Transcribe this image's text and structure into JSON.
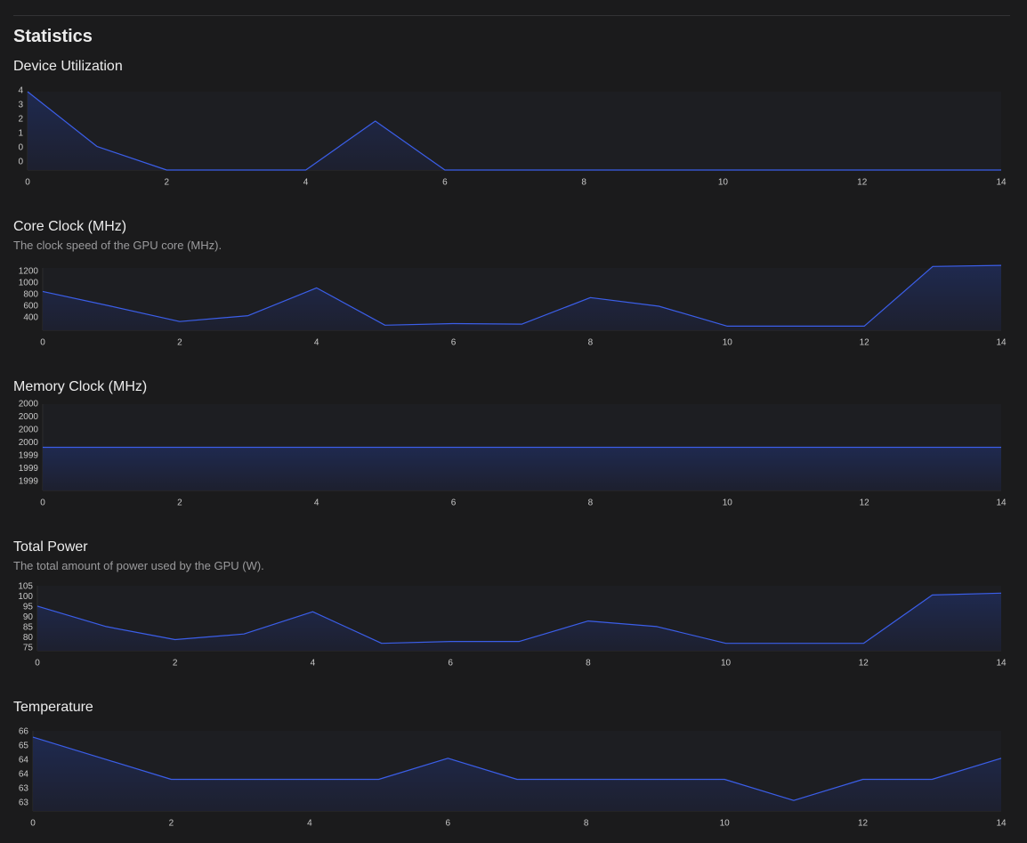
{
  "page": {
    "title": "Statistics"
  },
  "colors": {
    "background": "#1b1b1c",
    "line": "#3b5ee8",
    "area_top": "#1f2a52",
    "area_bottom": "#1d2030",
    "axis": "#2c2c2e",
    "tick_text": "#c8c8c8",
    "title_text": "#ececec",
    "desc_text": "#9a9a9c"
  },
  "chart_data": [
    {
      "id": "device-utilization",
      "type": "area",
      "title": "Device Utilization",
      "description": "",
      "x": [
        0,
        1,
        2,
        3,
        4,
        5,
        6,
        7,
        8,
        9,
        10,
        11,
        12,
        13,
        14
      ],
      "xticks": [
        "0",
        "2",
        "4",
        "6",
        "8",
        "10",
        "12",
        "14"
      ],
      "ytick_labels": [
        "4",
        "3",
        "2",
        "1",
        "0",
        "0"
      ],
      "ylim": [
        0,
        4
      ],
      "series": [
        {
          "values": [
            4,
            1.2,
            0,
            0,
            0,
            2.5,
            0,
            0,
            0,
            0,
            0,
            0,
            0,
            0,
            0
          ]
        }
      ],
      "grid": false
    },
    {
      "id": "core-clock",
      "type": "area",
      "title": "Core Clock (MHz)",
      "description": "The clock speed of the GPU core (MHz).",
      "x": [
        0,
        1,
        2,
        3,
        4,
        5,
        6,
        7,
        8,
        9,
        10,
        11,
        12,
        13,
        14
      ],
      "xticks": [
        "0",
        "2",
        "4",
        "6",
        "8",
        "10",
        "12",
        "14"
      ],
      "ytick_labels": [
        "1200",
        "1000",
        "800",
        "600",
        "400"
      ],
      "ylim": [
        130,
        1350
      ],
      "series": [
        {
          "values": [
            890,
            600,
            300,
            415,
            960,
            230,
            260,
            250,
            770,
            600,
            210,
            210,
            210,
            1380,
            1400
          ]
        }
      ],
      "grid": false
    },
    {
      "id": "memory-clock",
      "type": "area",
      "title": "Memory Clock (MHz)",
      "description": "",
      "x": [
        0,
        1,
        2,
        3,
        4,
        5,
        6,
        7,
        8,
        9,
        10,
        11,
        12,
        13,
        14
      ],
      "xticks": [
        "0",
        "2",
        "4",
        "6",
        "8",
        "10",
        "12",
        "14"
      ],
      "ytick_labels": [
        "2000",
        "2000",
        "2000",
        "2000",
        "1999",
        "1999",
        "1999"
      ],
      "ylim": [
        1999,
        2000
      ],
      "series": [
        {
          "values": [
            1999.5,
            1999.5,
            1999.5,
            1999.5,
            1999.5,
            1999.5,
            1999.5,
            1999.5,
            1999.5,
            1999.5,
            1999.5,
            1999.5,
            1999.5,
            1999.5,
            1999.5
          ]
        }
      ],
      "grid": false
    },
    {
      "id": "total-power",
      "type": "area",
      "title": "Total Power",
      "description": "The total amount of power used by the GPU (W).",
      "x": [
        0,
        1,
        2,
        3,
        4,
        5,
        6,
        7,
        8,
        9,
        10,
        11,
        12,
        13,
        14
      ],
      "xticks": [
        "0",
        "2",
        "4",
        "6",
        "8",
        "10",
        "12",
        "14"
      ],
      "ytick_labels": [
        "105",
        "100",
        "95",
        "90",
        "85",
        "80",
        "75"
      ],
      "ylim": [
        73,
        108
      ],
      "series": [
        {
          "values": [
            97,
            86,
            79,
            82,
            94,
            77,
            78,
            78,
            89,
            86,
            77,
            77,
            77,
            103,
            104
          ]
        }
      ],
      "grid": false
    },
    {
      "id": "temperature",
      "type": "area",
      "title": "Temperature",
      "description": "",
      "x": [
        0,
        1,
        2,
        3,
        4,
        5,
        6,
        7,
        8,
        9,
        10,
        11,
        12,
        13,
        14
      ],
      "xticks": [
        "0",
        "2",
        "4",
        "6",
        "8",
        "10",
        "12",
        "14"
      ],
      "ytick_labels": [
        "66",
        "65",
        "64",
        "64",
        "63",
        "63"
      ],
      "ylim": [
        62.5,
        66.3
      ],
      "series": [
        {
          "values": [
            66,
            65,
            64,
            64,
            64,
            64,
            65,
            64,
            64,
            64,
            64,
            63,
            64,
            64,
            65
          ]
        }
      ],
      "grid": false
    }
  ]
}
